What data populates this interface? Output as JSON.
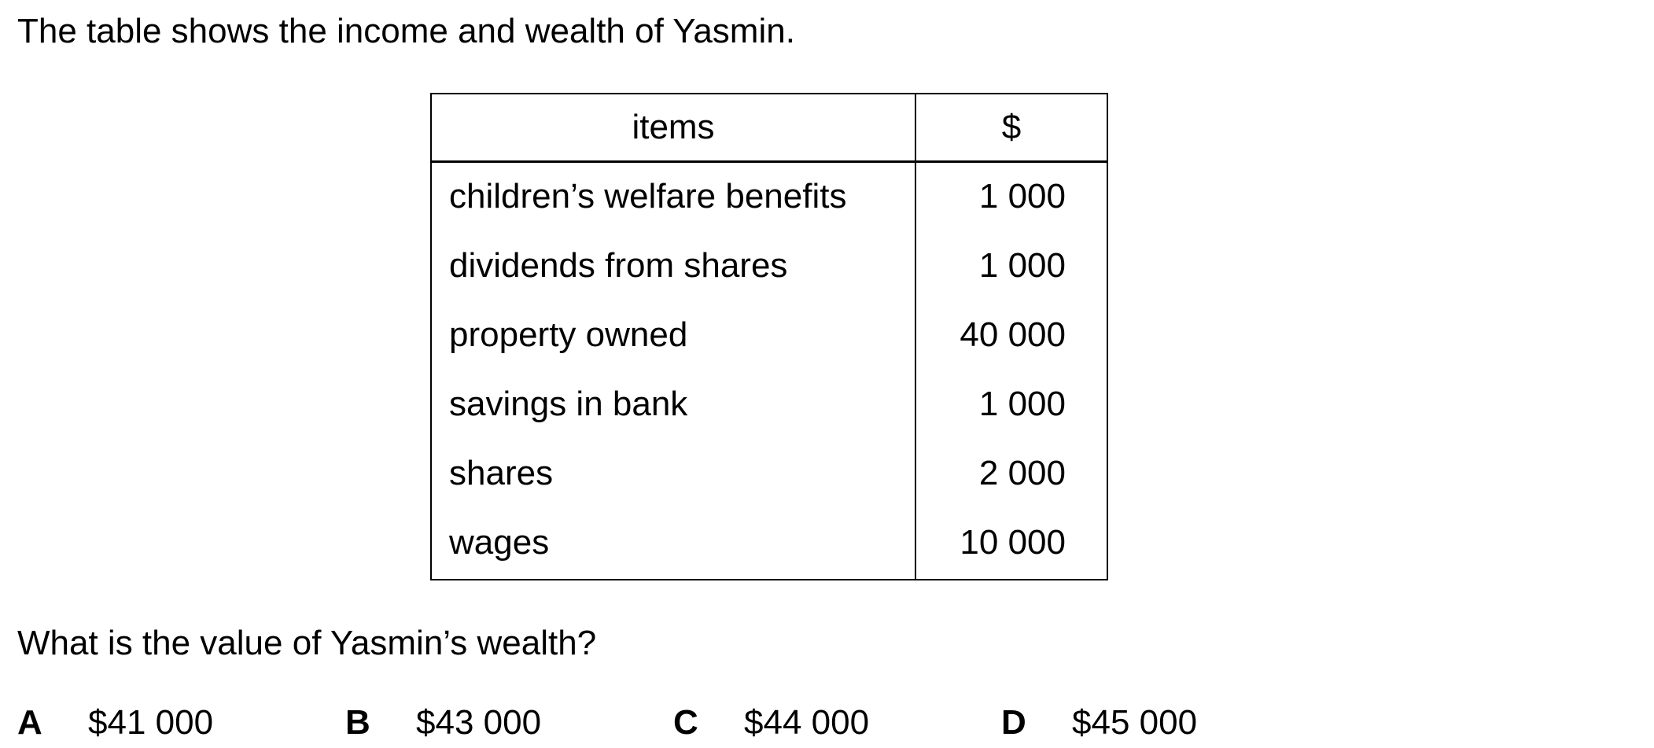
{
  "intro_text": "The table shows the income and wealth of Yasmin.",
  "table": {
    "headers": [
      "items",
      "$"
    ],
    "rows": [
      {
        "item": "children’s welfare benefits",
        "value": "1 000"
      },
      {
        "item": "dividends from shares",
        "value": "1 000"
      },
      {
        "item": "property owned",
        "value": "40 000"
      },
      {
        "item": "savings in bank",
        "value": "1 000"
      },
      {
        "item": "shares",
        "value": "2 000"
      },
      {
        "item": "wages",
        "value": "10 000"
      }
    ]
  },
  "question": "What is the value of Yasmin’s wealth?",
  "options": [
    {
      "letter": "A",
      "text": "$41 000"
    },
    {
      "letter": "B",
      "text": "$43 000"
    },
    {
      "letter": "C",
      "text": "$44 000"
    },
    {
      "letter": "D",
      "text": "$45 000"
    }
  ]
}
